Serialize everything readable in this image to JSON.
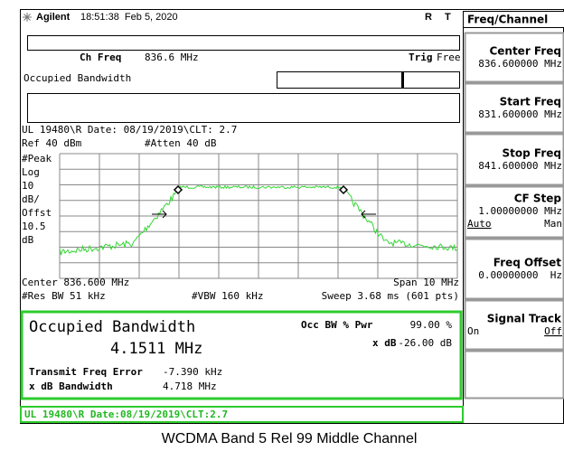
{
  "header": {
    "brand": "Agilent",
    "datetime": "18:51:38  Feb 5, 2020",
    "r": "R",
    "t": "T"
  },
  "menu": {
    "title": "Freq/Channel",
    "keys": [
      {
        "label": "Center Freq",
        "value": "836.600000 MHz"
      },
      {
        "label": "Start Freq",
        "value": "831.600000 MHz"
      },
      {
        "label": "Stop Freq",
        "value": "841.600000 MHz"
      },
      {
        "label": "CF Step",
        "value": "1.00000000 MHz",
        "options": [
          "Auto",
          "Man"
        ]
      },
      {
        "label": "Freq Offset",
        "value": "0.00000000  Hz"
      },
      {
        "label": "Signal Track",
        "options": [
          "On",
          "Off"
        ]
      }
    ]
  },
  "measurement": {
    "ch_freq_label": "Ch Freq",
    "ch_freq": "836.6 MHz",
    "trig_label": "Trig",
    "trig": "Free",
    "name": "Occupied Bandwidth",
    "note": "UL 19480\\R Date: 08/19/2019\\CLT: 2.7",
    "ref": "Ref 40 dBm",
    "atten": "#Atten 40 dB",
    "scale": [
      "#Peak",
      "Log",
      "10",
      "dB/",
      "Offst",
      "10.5",
      "dB"
    ],
    "center": "Center 836.600 MHz",
    "span": "Span 10 MHz",
    "rbw": "#Res BW 51 kHz",
    "vbw": "#VBW 160 kHz",
    "sweep": "Sweep 3.68 ms (601 pts)"
  },
  "results": {
    "title": "Occupied Bandwidth",
    "bandwidth": "4.1511 MHz",
    "pwr_label": "Occ BW % Pwr",
    "pwr": "99.00 %",
    "xdb_label": "x dB",
    "xdb": "-26.00 dB",
    "tfe_label": "Transmit Freq Error",
    "tfe": "-7.390 kHz",
    "xdbbw_label": "x dB Bandwidth",
    "xdbbw": "4.718 MHz"
  },
  "status": "UL 19480\\R Date:08/19/2019\\CLT:2.7",
  "caption": "WCDMA Band 5 Rel 99 Middle Channel"
}
